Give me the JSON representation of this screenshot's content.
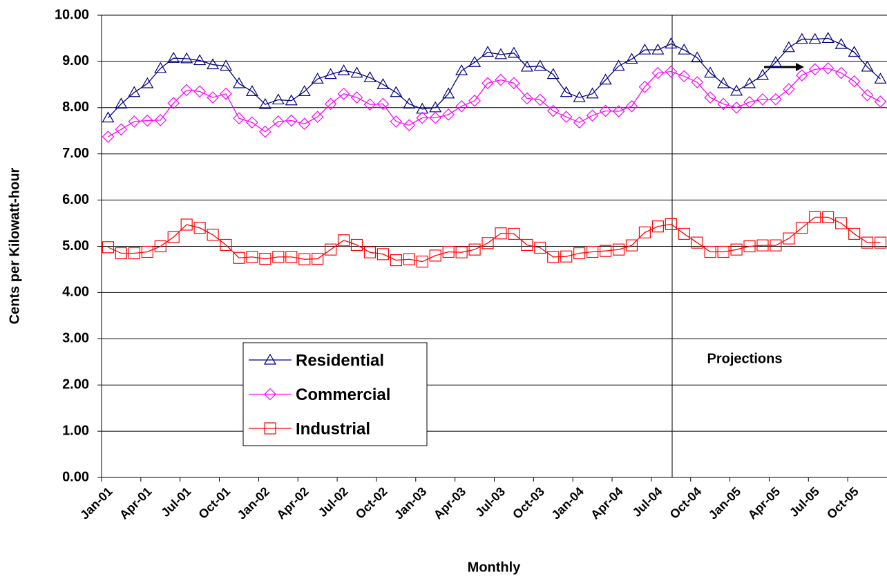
{
  "chart_data": {
    "type": "line",
    "y_label": "Cents per Kilowatt-hour",
    "x_label": "Monthly",
    "annotation": "Projections",
    "grid": true,
    "categories": [
      "Jan-01",
      null,
      null,
      "Apr-01",
      null,
      null,
      "Jul-01",
      null,
      null,
      "Oct-01",
      null,
      null,
      "Jan-02",
      null,
      null,
      "Apr-02",
      null,
      null,
      "Jul-02",
      null,
      null,
      "Oct-02",
      null,
      null,
      "Jan-03",
      null,
      null,
      "Apr-03",
      null,
      null,
      "Jul-03",
      null,
      null,
      "Oct-03",
      null,
      null,
      "Jan-04",
      null,
      null,
      "Apr-04",
      null,
      null,
      "Jul-04",
      null,
      null,
      "Oct-04",
      null,
      null,
      "Jan-05",
      null,
      null,
      "Apr-05",
      null,
      null,
      "Jul-05",
      null,
      null,
      "Oct-05",
      null,
      null
    ],
    "ylim": [
      0,
      10
    ],
    "yticks": [
      {
        "value": 0,
        "label": "0.00"
      },
      {
        "value": 1,
        "label": "1.00"
      },
      {
        "value": 2,
        "label": "2.00"
      },
      {
        "value": 3,
        "label": "3.00"
      },
      {
        "value": 4,
        "label": "4.00"
      },
      {
        "value": 5,
        "label": "5.00"
      },
      {
        "value": 6,
        "label": "6.00"
      },
      {
        "value": 7,
        "label": "7.00"
      },
      {
        "value": 8,
        "label": "8.00"
      },
      {
        "value": 9,
        "label": "9.00"
      },
      {
        "value": 10,
        "label": "10.00"
      }
    ],
    "series": [
      {
        "name": "Residential",
        "color": "#000080",
        "marker": "triangle",
        "values": [
          7.78,
          8.08,
          8.33,
          8.52,
          8.85,
          9.07,
          9.06,
          9.02,
          8.93,
          8.9,
          8.52,
          8.35,
          8.07,
          8.17,
          8.15,
          8.35,
          8.62,
          8.72,
          8.8,
          8.75,
          8.65,
          8.5,
          8.33,
          8.08,
          7.97,
          8.0,
          8.3,
          8.8,
          8.98,
          9.2,
          9.15,
          9.18,
          8.88,
          8.9,
          8.72,
          8.33,
          8.22,
          8.3,
          8.6,
          8.9,
          9.05,
          9.25,
          9.25,
          9.38,
          9.25,
          9.08,
          8.75,
          8.52,
          8.36,
          8.52,
          8.7,
          8.98,
          9.3,
          9.48,
          9.48,
          9.5,
          9.37,
          9.2,
          8.88,
          8.62
        ]
      },
      {
        "name": "Commercial",
        "color": "#ff00ff",
        "marker": "diamond",
        "values": [
          7.37,
          7.53,
          7.7,
          7.72,
          7.73,
          8.1,
          8.38,
          8.35,
          8.22,
          8.3,
          7.77,
          7.68,
          7.48,
          7.7,
          7.72,
          7.65,
          7.8,
          8.08,
          8.3,
          8.22,
          8.07,
          8.08,
          7.7,
          7.62,
          7.78,
          7.78,
          7.85,
          8.03,
          8.15,
          8.53,
          8.6,
          8.53,
          8.2,
          8.17,
          7.93,
          7.8,
          7.68,
          7.83,
          7.93,
          7.92,
          8.03,
          8.45,
          8.75,
          8.78,
          8.68,
          8.55,
          8.22,
          8.08,
          8.0,
          8.12,
          8.18,
          8.18,
          8.4,
          8.7,
          8.83,
          8.85,
          8.75,
          8.57,
          8.27,
          8.13
        ]
      },
      {
        "name": "Industrial",
        "color": "#ff0000",
        "marker": "square",
        "values": [
          4.98,
          4.85,
          4.85,
          4.88,
          5.0,
          5.2,
          5.47,
          5.4,
          5.25,
          5.03,
          4.75,
          4.77,
          4.73,
          4.77,
          4.77,
          4.72,
          4.73,
          4.93,
          5.13,
          5.03,
          4.87,
          4.83,
          4.7,
          4.72,
          4.67,
          4.8,
          4.88,
          4.87,
          4.93,
          5.07,
          5.28,
          5.27,
          5.03,
          4.97,
          4.77,
          4.78,
          4.85,
          4.88,
          4.9,
          4.93,
          5.02,
          5.3,
          5.43,
          5.48,
          5.27,
          5.08,
          4.88,
          4.88,
          4.93,
          5.0,
          5.02,
          5.02,
          5.17,
          5.4,
          5.63,
          5.63,
          5.5,
          5.27,
          5.08,
          5.08
        ]
      }
    ]
  }
}
